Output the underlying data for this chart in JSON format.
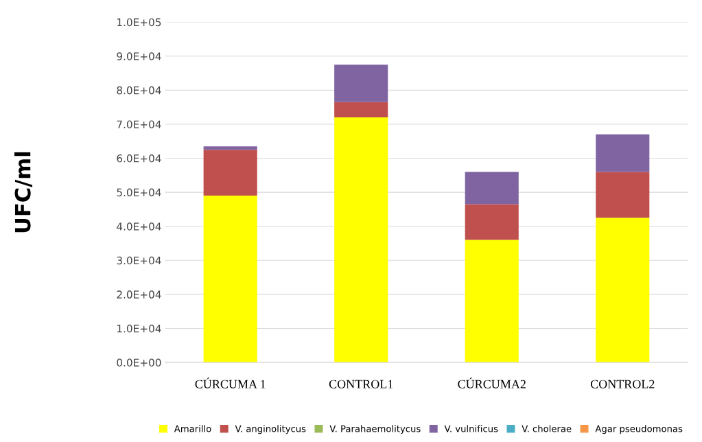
{
  "chart_data": {
    "type": "bar",
    "stacked": true,
    "ylabel": "UFC/ml",
    "categories": [
      "CÚRCUMA 1",
      "CONTROL1",
      "CÚRCUMA2",
      "CONTROL2"
    ],
    "series": [
      {
        "name": "Amarillo",
        "color": "#ffff00",
        "values": [
          49000,
          72000,
          36000,
          42500
        ]
      },
      {
        "name": "V. anginolitycus",
        "color": "#c0504d",
        "values": [
          13500,
          4500,
          10500,
          13500
        ]
      },
      {
        "name": "V. Parahaemolitycus",
        "color": "#9bbb59",
        "values": [
          0,
          0,
          0,
          0
        ]
      },
      {
        "name": "V. vulnificus",
        "color": "#8064a2",
        "values": [
          1000,
          11000,
          9500,
          11000
        ]
      },
      {
        "name": "V. cholerae",
        "color": "#4bacc6",
        "values": [
          0,
          0,
          0,
          0
        ]
      },
      {
        "name": "Agar pseudomonas",
        "color": "#f79646",
        "values": [
          0,
          0,
          0,
          0
        ]
      }
    ],
    "ylim": [
      0,
      100000
    ],
    "yticks": [
      {
        "value": 0,
        "label": "0.0E+00"
      },
      {
        "value": 10000,
        "label": "1.0E+04"
      },
      {
        "value": 20000,
        "label": "2.0E+04"
      },
      {
        "value": 30000,
        "label": "3.0E+04"
      },
      {
        "value": 40000,
        "label": "4.0E+04"
      },
      {
        "value": 50000,
        "label": "5.0E+04"
      },
      {
        "value": 60000,
        "label": "6.0E+04"
      },
      {
        "value": 70000,
        "label": "7.0E+04"
      },
      {
        "value": 80000,
        "label": "8.0E+04"
      },
      {
        "value": 90000,
        "label": "9.0E+04"
      },
      {
        "value": 100000,
        "label": "1.0E+05"
      }
    ],
    "grid": "y",
    "legend": "bottom"
  }
}
